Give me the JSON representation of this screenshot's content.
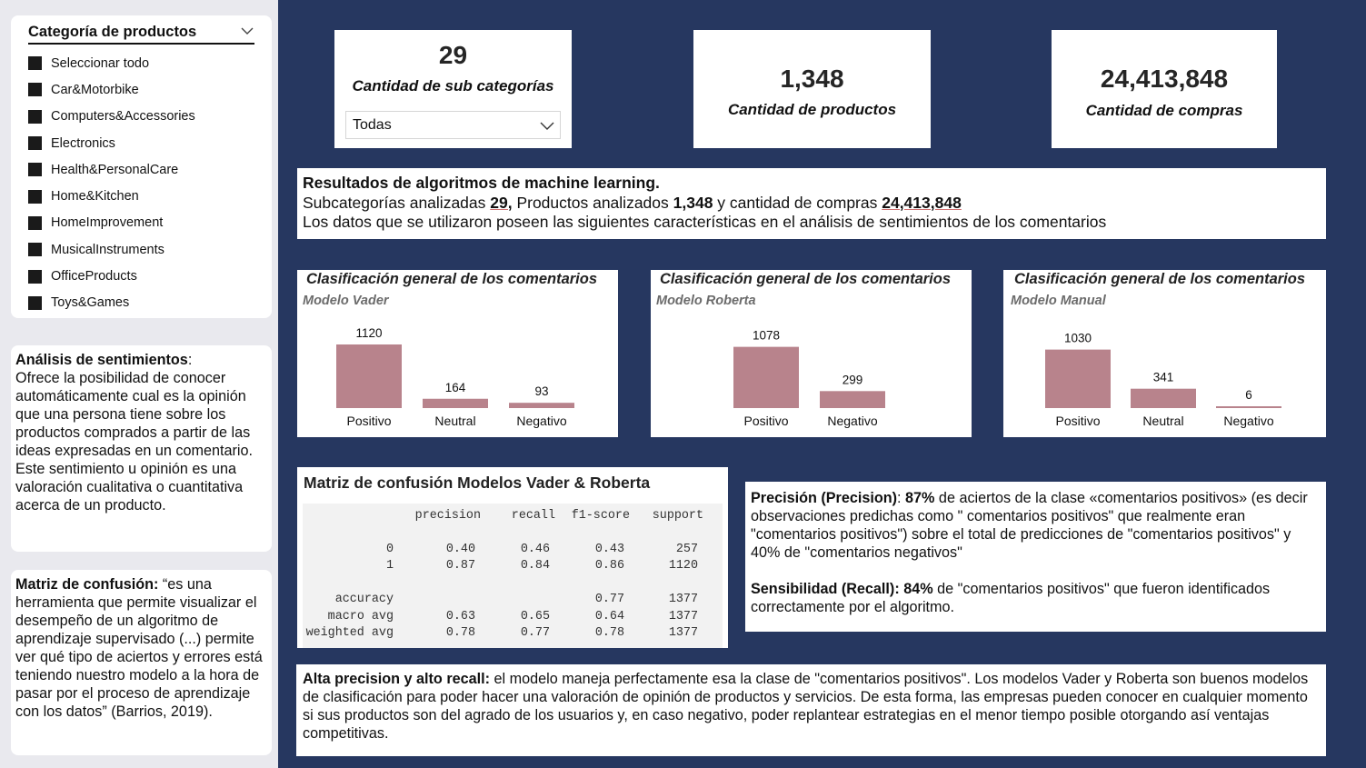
{
  "slicer": {
    "title": "Categoría de productos",
    "items": [
      "Seleccionar todo",
      "Car&Motorbike",
      "Computers&Accessories",
      "Electronics",
      "Health&PersonalCare",
      "Home&Kitchen",
      "HomeImprovement",
      "MusicalInstruments",
      "OfficeProducts",
      "Toys&Games"
    ]
  },
  "sentiment_panel": {
    "heading": "Análisis de sentimientos",
    "colon": ":",
    "body": "Ofrece la posibilidad de conocer automáticamente cual es la opinión que una persona tiene sobre los productos comprados a partir de las ideas expresadas en un comentario. Este sentimiento u opinión es una valoración cualitativa o cuantitativa acerca de un producto."
  },
  "confusion_panel": {
    "heading": "Matriz de confusión:",
    "body": " “es una herramienta que permite visualizar el desempeño de un algoritmo de aprendizaje supervisado (...) permite ver qué tipo de aciertos y errores está teniendo nuestro modelo a la hora de pasar por el proceso de aprendizaje con los datos” (Barrios, 2019)."
  },
  "kpis": {
    "subcategories": {
      "value": "29",
      "label": "Cantidad de sub categorías",
      "dropdown": "Todas"
    },
    "products": {
      "value": "1,348",
      "label": "Cantidad de productos"
    },
    "purchases": {
      "value": "24,413,848",
      "label": "Cantidad de compras"
    }
  },
  "results": {
    "title": "Resultados de algoritmos de machine learning.",
    "l2_a": "Subcategorías analizadas ",
    "l2_b": "29,",
    "l2_c": " Productos analizados ",
    "l2_d": "1,348",
    "l2_e": " y cantidad de compras ",
    "l2_f": "24,413,848",
    "line3": "Los datos que se utilizaron poseen las siguientes características en el análisis de sentimientos de los comentarios"
  },
  "chart_data": [
    {
      "type": "bar",
      "title": "Clasificación general de los comentarios",
      "subtitle": "Modelo Vader",
      "categories": [
        "Positivo",
        "Neutral",
        "Negativo"
      ],
      "values": [
        1120,
        164,
        93
      ],
      "color": "#b8838c"
    },
    {
      "type": "bar",
      "title": "Clasificación general de los comentarios",
      "subtitle": "Modelo Roberta",
      "categories": [
        "Positivo",
        "Negativo"
      ],
      "values": [
        1078,
        299
      ],
      "color": "#b8838c"
    },
    {
      "type": "bar",
      "title": "Clasificación general de los comentarios",
      "subtitle": "Modelo Manual",
      "categories": [
        "Positivo",
        "Neutral",
        "Negativo"
      ],
      "values": [
        1030,
        341,
        6
      ],
      "color": "#b8838c"
    }
  ],
  "matrix": {
    "title": "Matriz de confusión Modelos Vader & Roberta",
    "header": [
      "precision",
      "recall",
      "f1-score",
      "support"
    ],
    "rows": [
      {
        "label": "0",
        "vals": [
          "0.40",
          "0.46",
          "0.43",
          "257"
        ]
      },
      {
        "label": "1",
        "vals": [
          "0.87",
          "0.84",
          "0.86",
          "1120"
        ]
      },
      {
        "label": "accuracy",
        "vals": [
          "",
          "",
          "0.77",
          "1377"
        ]
      },
      {
        "label": "macro avg",
        "vals": [
          "0.63",
          "0.65",
          "0.64",
          "1377"
        ]
      },
      {
        "label": "weighted avg",
        "vals": [
          "0.78",
          "0.77",
          "0.78",
          "1377"
        ]
      }
    ]
  },
  "metrics": {
    "p_head": "Precisión (Precision)",
    "p_colon": ": ",
    "p_pct": "87%",
    "p_body": " de aciertos de la clase «comentarios positivos» (es decir observaciones predichas como \" comentarios positivos\" que realmente eran \"comentarios positivos\") sobre el total de predicciones de \"comentarios positivos\" y 40% de \"comentarios negativos\"",
    "r_head": "Sensibilidad (Recall): 84%",
    "r_body": " de \"comentarios positivos\" que fueron identificados correctamente por el algoritmo."
  },
  "conclusion": {
    "head": "Alta precision y alto recall:",
    "body": " el modelo maneja perfectamente esa la clase de \"comentarios positivos\". Los modelos Vader y Roberta son buenos modelos de clasificación para poder hacer una valoración de opinión de productos y servicios. De esta forma, las empresas pueden conocer en cualquier momento si sus  productos son del agrado de los usuarios y, en caso negativo, poder replantear estrategias en el menor tiempo posible otorgando así ventajas competitivas."
  }
}
